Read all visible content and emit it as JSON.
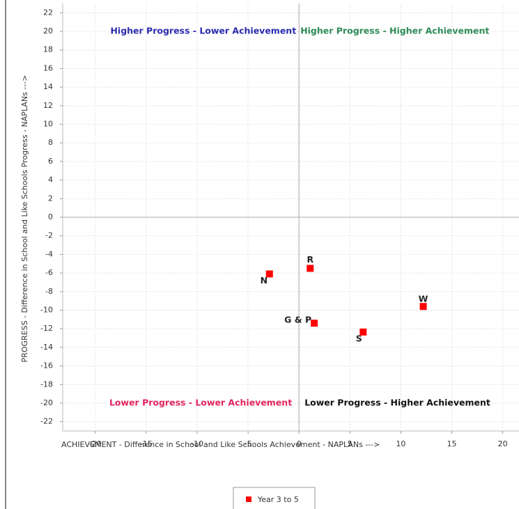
{
  "chart_data": {
    "type": "scatter",
    "x_label": "ACHIEVEMENT - Difference in School and Like Schools Achievement - NAPLANs --->",
    "y_label": "PROGRESS - Difference in School and Like Schools Progress - NAPLANs --->",
    "series": [
      {
        "name": "Year 3 to 5",
        "color": "#ff0000",
        "x": [
          -2.9,
          1.1,
          1.5,
          6.3,
          12.2
        ],
        "values": [
          -6.1,
          -5.5,
          -11.4,
          -12.35,
          -9.6
        ],
        "point_labels": [
          "N",
          "R",
          "G & P",
          "S",
          "W"
        ]
      }
    ],
    "annotations": [
      {
        "text": "Higher Progress - Lower Achievement",
        "color": "#2b2bb0"
      },
      {
        "text": "Higher Progress - Higher Achievement",
        "color": "#2e8b57"
      },
      {
        "text": "Lower Progress - Lower Achievement",
        "color": "#e0245e"
      },
      {
        "text": "Lower Progress - Higher Achievement",
        "color": "#111111"
      }
    ],
    "xlim": [
      -23.2,
      21.6
    ],
    "ylim": [
      -23,
      23
    ],
    "xticks": [
      -20,
      -15,
      -10,
      -5,
      0,
      5,
      10,
      15,
      20
    ],
    "yticks": [
      -22,
      -20,
      -18,
      -16,
      -14,
      -12,
      -10,
      -8,
      -6,
      -4,
      -2,
      0,
      2,
      4,
      6,
      8,
      10,
      12,
      14,
      16,
      18,
      20,
      22
    ],
    "grid": true,
    "legend": "bottom"
  }
}
